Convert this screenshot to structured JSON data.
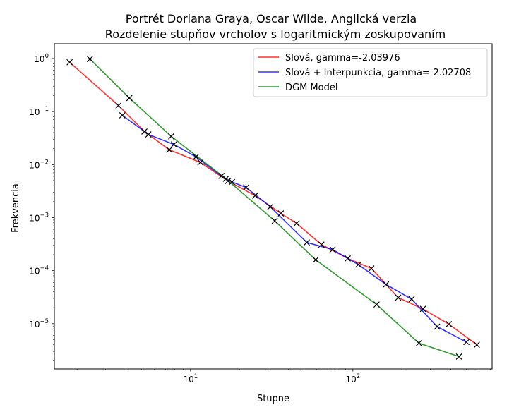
{
  "chart_data": {
    "type": "line",
    "title_line1": "Portrét Doriana Graya, Oscar Wilde, Anglická verzia",
    "title_line2": "Rozdelenie stupňov vrcholov s logaritmickým zoskupovaním",
    "xlabel": "Stupne",
    "ylabel": "Frekvencia",
    "xscale": "log",
    "yscale": "log",
    "xlim": [
      1.45,
      720
    ],
    "ylim": [
      1.4e-06,
      1.9
    ],
    "x_ticks": [
      {
        "value": 10,
        "base": "10",
        "exp": "1"
      },
      {
        "value": 100,
        "base": "10",
        "exp": "2"
      }
    ],
    "y_ticks": [
      {
        "value": 1,
        "base": "10",
        "exp": "0"
      },
      {
        "value": 0.1,
        "base": "10",
        "exp": "−1"
      },
      {
        "value": 0.01,
        "base": "10",
        "exp": "−2"
      },
      {
        "value": 0.001,
        "base": "10",
        "exp": "−3"
      },
      {
        "value": 0.0001,
        "base": "10",
        "exp": "−4"
      },
      {
        "value": 1e-05,
        "base": "10",
        "exp": "−5"
      }
    ],
    "legend_position": "upper right",
    "marker": "x",
    "series": [
      {
        "name": "Slová, gamma=-2.03976",
        "color": "#ff0000",
        "points": [
          [
            1.8,
            0.85
          ],
          [
            3.6,
            0.13
          ],
          [
            5.2,
            0.042
          ],
          [
            7.4,
            0.019
          ],
          [
            11.5,
            0.011
          ],
          [
            17,
            0.0049
          ],
          [
            25,
            0.0026
          ],
          [
            36,
            0.0012
          ],
          [
            45,
            0.00078
          ],
          [
            64,
            0.00031
          ],
          [
            93,
            0.00017
          ],
          [
            130,
            0.00011
          ],
          [
            190,
            3.1e-05
          ],
          [
            270,
            1.9e-05
          ],
          [
            390,
            9.8e-06
          ],
          [
            580,
            4e-06
          ]
        ]
      },
      {
        "name": "Slová + Interpunkcia, gamma=-2.02708",
        "color": "#0000ff",
        "points": [
          [
            3.8,
            0.085
          ],
          [
            5.5,
            0.037
          ],
          [
            7.9,
            0.024
          ],
          [
            10.8,
            0.014
          ],
          [
            15.5,
            0.0061
          ],
          [
            18,
            0.0047
          ],
          [
            22,
            0.0037
          ],
          [
            31,
            0.0016
          ],
          [
            52,
            0.00034
          ],
          [
            75,
            0.00025
          ],
          [
            108,
            0.00013
          ],
          [
            160,
            5.5e-05
          ],
          [
            230,
            2.9e-05
          ],
          [
            330,
            8.8e-06
          ],
          [
            500,
            4.5e-06
          ]
        ]
      },
      {
        "name": "DGM Model",
        "color": "#008000",
        "points": [
          [
            2.4,
            0.98
          ],
          [
            4.2,
            0.18
          ],
          [
            7.6,
            0.034
          ],
          [
            16.5,
            0.0054
          ],
          [
            33,
            0.00087
          ],
          [
            59,
            0.00016
          ],
          [
            140,
            2.3e-05
          ],
          [
            255,
            4.3e-06
          ],
          [
            450,
            2.4e-06
          ]
        ]
      }
    ]
  }
}
